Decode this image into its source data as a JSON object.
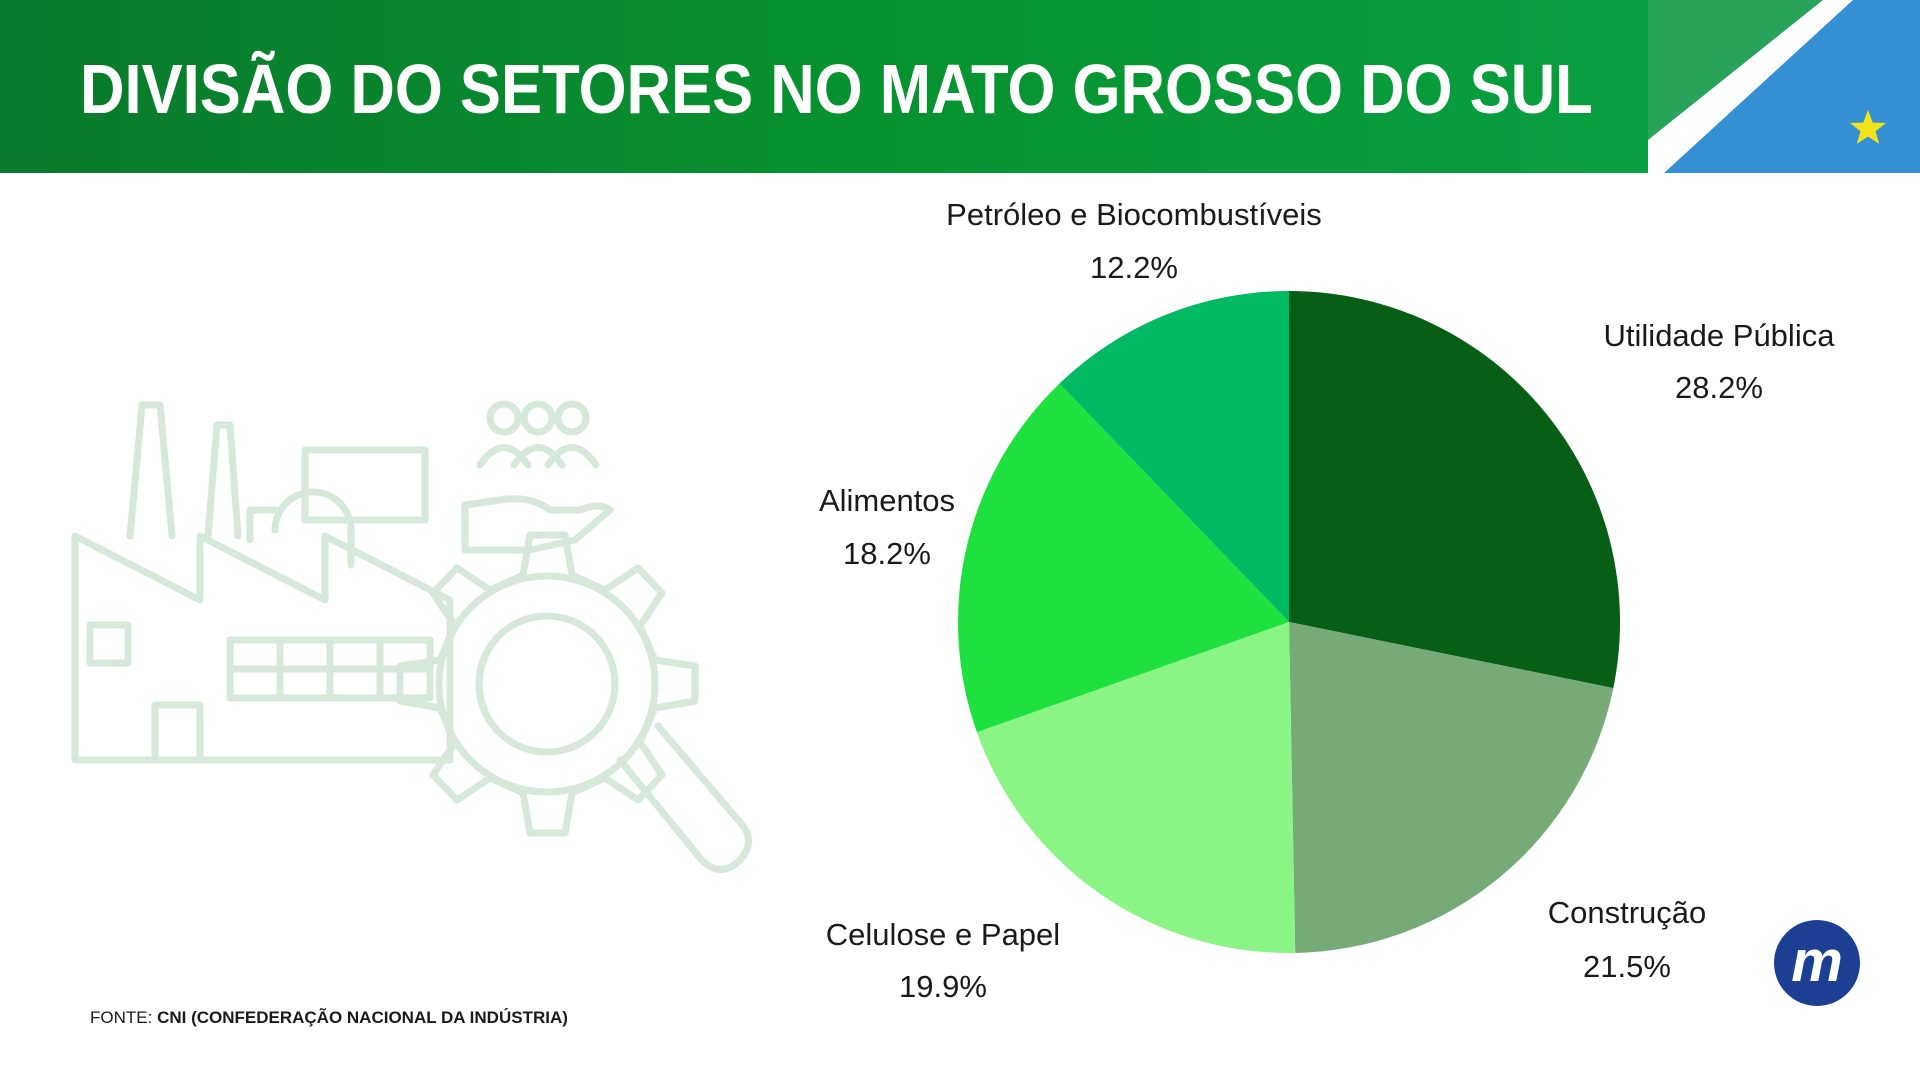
{
  "header": {
    "title": "DIVISÃO DO SETORES NO MATO GROSSO DO SUL"
  },
  "colors": {
    "header_green": "#07922f",
    "flag_green": "#27a35a",
    "flag_blue": "#3490d2",
    "flag_star": "#f1e21b",
    "illustration_stroke": "#d6e8da",
    "logo_blue": "#1c3f94"
  },
  "icons": [
    "state-flag-icon",
    "factory-illustration-icon",
    "star-icon",
    "m-logo-icon"
  ],
  "chart_data": {
    "type": "pie",
    "title": "",
    "start_angle_deg": 0,
    "direction": "clockwise",
    "slices": [
      {
        "label": "Utilidade Pública",
        "value": 28.2,
        "value_text": "28.2%",
        "color": "#075e15"
      },
      {
        "label": "Construção",
        "value": 21.5,
        "value_text": "21.5%",
        "color": "#76ab77"
      },
      {
        "label": "Celulose e Papel",
        "value": 19.9,
        "value_text": "19.9%",
        "color": "#8af584"
      },
      {
        "label": "Alimentos",
        "value": 18.2,
        "value_text": "18.2%",
        "color": "#1ee03f"
      },
      {
        "label": "Petróleo e Biocombustíveis",
        "value": 12.2,
        "value_text": "12.2%",
        "color": "#02b964"
      }
    ]
  },
  "source": {
    "prefix": "FONTE: ",
    "name": "CNI (CONFEDERAÇÃO NACIONAL DA INDÚSTRIA)"
  },
  "logo": {
    "letter": "m"
  }
}
